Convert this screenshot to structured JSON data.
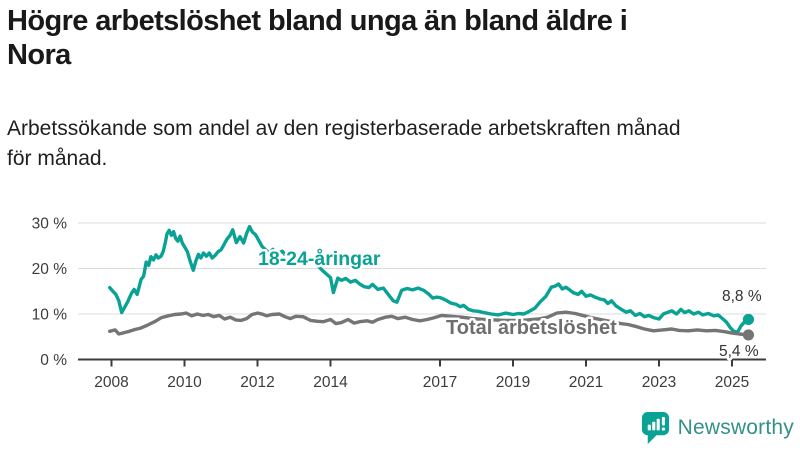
{
  "header": {
    "title_lines": [
      "Högre arbetslöshet bland unga än bland äldre i",
      "Nora"
    ],
    "subtitle_lines": [
      "Arbetssökande som andel av den registerbaserade arbetskraften månad",
      "för månad."
    ]
  },
  "chart_data": {
    "type": "line",
    "title": "Högre arbetslöshet bland unga än bland äldre i Nora",
    "subtitle": "Arbetssökande som andel av den registerbaserade arbetskraften månad för månad.",
    "unit": "%",
    "grid": "horizontal",
    "legend_position": "inline-labels",
    "x_range": [
      2007.9,
      2025.75
    ],
    "ylim": [
      0,
      32
    ],
    "y_axis": {
      "ticks": [
        {
          "value": 0,
          "label": "0 %"
        },
        {
          "value": 10,
          "label": "10 %"
        },
        {
          "value": 20,
          "label": "20 %"
        },
        {
          "value": 30,
          "label": "30 %"
        }
      ]
    },
    "x_axis": {
      "ticks": [
        {
          "value": 2008,
          "label": "2008"
        },
        {
          "value": 2010,
          "label": "2010"
        },
        {
          "value": 2012,
          "label": "2012"
        },
        {
          "value": 2014,
          "label": "2014"
        },
        {
          "value": 2017,
          "label": "2017"
        },
        {
          "value": 2019,
          "label": "2019"
        },
        {
          "value": 2021,
          "label": "2021"
        },
        {
          "value": 2023,
          "label": "2023"
        },
        {
          "value": 2025,
          "label": "2025"
        }
      ]
    },
    "series": [
      {
        "name": "18-24-åringar",
        "color": "#0aa295",
        "end_label": "8,8 %",
        "end_value": 8.8,
        "points": [
          [
            2007.95,
            15.8
          ],
          [
            2008.05,
            14.9
          ],
          [
            2008.12,
            14.3
          ],
          [
            2008.2,
            12.9
          ],
          [
            2008.28,
            10.3
          ],
          [
            2008.37,
            11.6
          ],
          [
            2008.45,
            12.8
          ],
          [
            2008.55,
            14.6
          ],
          [
            2008.62,
            15.4
          ],
          [
            2008.7,
            14.3
          ],
          [
            2008.81,
            17.6
          ],
          [
            2008.88,
            18.3
          ],
          [
            2008.95,
            21.4
          ],
          [
            2009.02,
            20.7
          ],
          [
            2009.08,
            22.6
          ],
          [
            2009.15,
            21.9
          ],
          [
            2009.22,
            23.0
          ],
          [
            2009.28,
            22.3
          ],
          [
            2009.36,
            22.7
          ],
          [
            2009.42,
            23.8
          ],
          [
            2009.47,
            25.6
          ],
          [
            2009.52,
            27.6
          ],
          [
            2009.58,
            28.4
          ],
          [
            2009.64,
            27.3
          ],
          [
            2009.7,
            28.1
          ],
          [
            2009.76,
            26.6
          ],
          [
            2009.82,
            26.0
          ],
          [
            2009.88,
            27.1
          ],
          [
            2009.94,
            25.6
          ],
          [
            2010.0,
            24.8
          ],
          [
            2010.08,
            23.7
          ],
          [
            2010.16,
            21.5
          ],
          [
            2010.24,
            19.6
          ],
          [
            2010.31,
            21.6
          ],
          [
            2010.38,
            23.1
          ],
          [
            2010.45,
            22.3
          ],
          [
            2010.52,
            23.4
          ],
          [
            2010.6,
            22.7
          ],
          [
            2010.68,
            23.4
          ],
          [
            2010.76,
            22.3
          ],
          [
            2010.84,
            22.9
          ],
          [
            2010.92,
            23.7
          ],
          [
            2011.0,
            24.1
          ],
          [
            2011.08,
            25.2
          ],
          [
            2011.16,
            26.4
          ],
          [
            2011.25,
            27.3
          ],
          [
            2011.32,
            28.5
          ],
          [
            2011.42,
            25.7
          ],
          [
            2011.52,
            27.0
          ],
          [
            2011.62,
            25.6
          ],
          [
            2011.7,
            27.7
          ],
          [
            2011.78,
            29.2
          ],
          [
            2011.86,
            28.0
          ],
          [
            2011.94,
            27.5
          ],
          [
            2012.02,
            26.4
          ],
          [
            2012.12,
            24.9
          ],
          [
            2012.22,
            24.1
          ],
          [
            2012.32,
            23.4
          ],
          [
            2012.42,
            24.2
          ],
          [
            2012.55,
            23.3
          ],
          [
            2012.68,
            23.8
          ],
          [
            2012.8,
            22.6
          ],
          [
            2012.92,
            23.2
          ],
          [
            2013.05,
            22.4
          ],
          [
            2013.2,
            23.0
          ],
          [
            2013.35,
            22.3
          ],
          [
            2013.5,
            22.0
          ],
          [
            2013.6,
            21.3
          ],
          [
            2013.7,
            20.2
          ],
          [
            2013.8,
            19.4
          ],
          [
            2013.9,
            18.7
          ],
          [
            2014.0,
            18.0
          ],
          [
            2014.08,
            14.7
          ],
          [
            2014.2,
            17.9
          ],
          [
            2014.3,
            17.4
          ],
          [
            2014.42,
            17.8
          ],
          [
            2014.55,
            17.0
          ],
          [
            2014.68,
            17.4
          ],
          [
            2014.8,
            16.6
          ],
          [
            2014.92,
            16.0
          ],
          [
            2015.05,
            15.8
          ],
          [
            2015.15,
            16.5
          ],
          [
            2015.3,
            15.4
          ],
          [
            2015.45,
            15.7
          ],
          [
            2015.6,
            14.1
          ],
          [
            2015.72,
            12.9
          ],
          [
            2015.82,
            12.6
          ],
          [
            2015.95,
            15.2
          ],
          [
            2016.1,
            15.6
          ],
          [
            2016.25,
            15.3
          ],
          [
            2016.4,
            15.7
          ],
          [
            2016.55,
            15.2
          ],
          [
            2016.7,
            14.3
          ],
          [
            2016.8,
            13.5
          ],
          [
            2016.9,
            13.7
          ],
          [
            2017.0,
            13.6
          ],
          [
            2017.15,
            13.1
          ],
          [
            2017.3,
            12.4
          ],
          [
            2017.45,
            12.1
          ],
          [
            2017.55,
            11.6
          ],
          [
            2017.65,
            11.9
          ],
          [
            2017.78,
            11.0
          ],
          [
            2017.9,
            10.7
          ],
          [
            2018.05,
            10.6
          ],
          [
            2018.2,
            10.3
          ],
          [
            2018.4,
            10.0
          ],
          [
            2018.6,
            9.8
          ],
          [
            2018.8,
            10.2
          ],
          [
            2019.0,
            9.9
          ],
          [
            2019.15,
            10.1
          ],
          [
            2019.3,
            10.0
          ],
          [
            2019.45,
            10.6
          ],
          [
            2019.6,
            11.3
          ],
          [
            2019.75,
            12.7
          ],
          [
            2019.9,
            13.9
          ],
          [
            2020.05,
            15.9
          ],
          [
            2020.15,
            16.1
          ],
          [
            2020.25,
            16.6
          ],
          [
            2020.35,
            15.5
          ],
          [
            2020.45,
            15.9
          ],
          [
            2020.55,
            15.3
          ],
          [
            2020.65,
            14.7
          ],
          [
            2020.78,
            14.3
          ],
          [
            2020.88,
            15.0
          ],
          [
            2021.0,
            13.9
          ],
          [
            2021.12,
            14.2
          ],
          [
            2021.25,
            13.7
          ],
          [
            2021.38,
            13.3
          ],
          [
            2021.5,
            13.1
          ],
          [
            2021.6,
            12.3
          ],
          [
            2021.7,
            12.9
          ],
          [
            2021.82,
            11.8
          ],
          [
            2021.95,
            11.1
          ],
          [
            2022.1,
            10.4
          ],
          [
            2022.22,
            10.7
          ],
          [
            2022.35,
            9.7
          ],
          [
            2022.48,
            10.1
          ],
          [
            2022.6,
            9.4
          ],
          [
            2022.72,
            9.7
          ],
          [
            2022.85,
            9.2
          ],
          [
            2023.0,
            8.9
          ],
          [
            2023.12,
            10.0
          ],
          [
            2023.25,
            10.4
          ],
          [
            2023.35,
            10.7
          ],
          [
            2023.48,
            10.0
          ],
          [
            2023.6,
            11.0
          ],
          [
            2023.7,
            10.3
          ],
          [
            2023.82,
            10.7
          ],
          [
            2023.95,
            10.0
          ],
          [
            2024.08,
            10.4
          ],
          [
            2024.2,
            9.8
          ],
          [
            2024.35,
            10.1
          ],
          [
            2024.5,
            9.6
          ],
          [
            2024.62,
            9.8
          ],
          [
            2024.75,
            8.9
          ],
          [
            2024.85,
            8.2
          ],
          [
            2024.95,
            7.0
          ],
          [
            2025.05,
            6.2
          ],
          [
            2025.15,
            6.0
          ],
          [
            2025.25,
            7.4
          ],
          [
            2025.35,
            8.3
          ],
          [
            2025.45,
            8.8
          ]
        ]
      },
      {
        "name": "Total arbetslöshet",
        "color": "#757575",
        "end_label": "5,4 %",
        "end_value": 5.4,
        "points": [
          [
            2007.95,
            6.2
          ],
          [
            2008.1,
            6.5
          ],
          [
            2008.2,
            5.6
          ],
          [
            2008.3,
            5.8
          ],
          [
            2008.45,
            6.1
          ],
          [
            2008.64,
            6.6
          ],
          [
            2008.8,
            6.9
          ],
          [
            2009.0,
            7.6
          ],
          [
            2009.2,
            8.4
          ],
          [
            2009.37,
            9.2
          ],
          [
            2009.56,
            9.6
          ],
          [
            2009.73,
            9.9
          ],
          [
            2009.9,
            10.0
          ],
          [
            2010.05,
            10.2
          ],
          [
            2010.2,
            9.6
          ],
          [
            2010.35,
            10.0
          ],
          [
            2010.5,
            9.7
          ],
          [
            2010.65,
            9.9
          ],
          [
            2010.8,
            9.4
          ],
          [
            2010.95,
            9.7
          ],
          [
            2011.1,
            8.9
          ],
          [
            2011.25,
            9.3
          ],
          [
            2011.4,
            8.7
          ],
          [
            2011.55,
            8.6
          ],
          [
            2011.7,
            9.0
          ],
          [
            2011.85,
            9.9
          ],
          [
            2012.0,
            10.2
          ],
          [
            2012.12,
            10.0
          ],
          [
            2012.25,
            9.6
          ],
          [
            2012.4,
            9.9
          ],
          [
            2012.6,
            10.0
          ],
          [
            2012.75,
            9.4
          ],
          [
            2012.9,
            9.0
          ],
          [
            2013.05,
            9.5
          ],
          [
            2013.25,
            9.4
          ],
          [
            2013.45,
            8.6
          ],
          [
            2013.65,
            8.4
          ],
          [
            2013.8,
            8.3
          ],
          [
            2014.0,
            8.8
          ],
          [
            2014.15,
            7.9
          ],
          [
            2014.3,
            8.1
          ],
          [
            2014.48,
            8.8
          ],
          [
            2014.65,
            8.0
          ],
          [
            2014.8,
            8.3
          ],
          [
            2015.0,
            8.5
          ],
          [
            2015.15,
            8.2
          ],
          [
            2015.3,
            8.8
          ],
          [
            2015.5,
            9.3
          ],
          [
            2015.68,
            9.5
          ],
          [
            2015.85,
            9.0
          ],
          [
            2016.05,
            9.3
          ],
          [
            2016.25,
            8.8
          ],
          [
            2016.45,
            8.5
          ],
          [
            2016.65,
            8.8
          ],
          [
            2016.85,
            9.2
          ],
          [
            2017.05,
            9.7
          ],
          [
            2017.3,
            9.5
          ],
          [
            2017.6,
            9.3
          ],
          [
            2017.9,
            9.0
          ],
          [
            2018.2,
            8.8
          ],
          [
            2018.5,
            8.7
          ],
          [
            2018.8,
            8.6
          ],
          [
            2019.1,
            8.6
          ],
          [
            2019.4,
            8.7
          ],
          [
            2019.7,
            8.9
          ],
          [
            2019.95,
            9.3
          ],
          [
            2020.2,
            10.2
          ],
          [
            2020.45,
            10.4
          ],
          [
            2020.7,
            10.1
          ],
          [
            2020.95,
            9.6
          ],
          [
            2021.2,
            9.1
          ],
          [
            2021.45,
            8.7
          ],
          [
            2021.7,
            8.3
          ],
          [
            2021.95,
            7.9
          ],
          [
            2022.15,
            7.7
          ],
          [
            2022.35,
            7.3
          ],
          [
            2022.6,
            6.7
          ],
          [
            2022.85,
            6.3
          ],
          [
            2023.1,
            6.5
          ],
          [
            2023.35,
            6.7
          ],
          [
            2023.55,
            6.4
          ],
          [
            2023.8,
            6.3
          ],
          [
            2024.05,
            6.5
          ],
          [
            2024.3,
            6.3
          ],
          [
            2024.55,
            6.4
          ],
          [
            2024.8,
            6.1
          ],
          [
            2025.0,
            5.8
          ],
          [
            2025.2,
            5.6
          ],
          [
            2025.45,
            5.4
          ]
        ]
      }
    ],
    "colors": {
      "youth_line": "#0aa295",
      "total_line": "#757575",
      "gridline": "#dcdcdc",
      "axis": "#3c3c3c",
      "tick_label": "#3c3c3c",
      "end_label_text": "#333333"
    }
  },
  "footer": {
    "brand": "Newsworthy",
    "brand_color": "#35908a",
    "logo_color": "#0aa295"
  }
}
